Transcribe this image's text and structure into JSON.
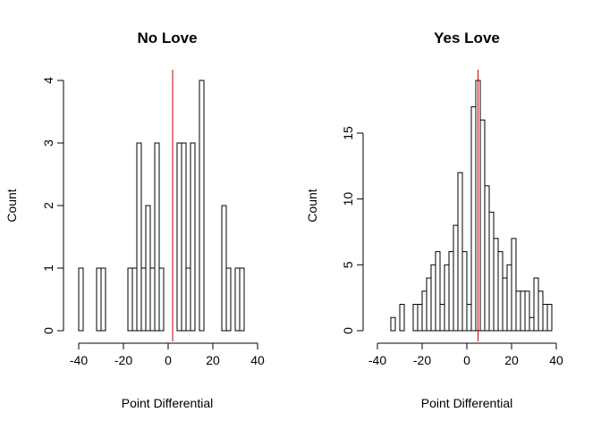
{
  "chart_data": [
    {
      "type": "bar",
      "title": "No Love",
      "xlabel": "Point Differential",
      "ylabel": "Count",
      "xlim": [
        -40,
        40
      ],
      "ylim": [
        0,
        4
      ],
      "xticks": [
        -40,
        -20,
        0,
        20,
        40
      ],
      "yticks": [
        0,
        1,
        2,
        3,
        4
      ],
      "bin_width": 2,
      "bins": [
        {
          "x0": -40,
          "count": 1
        },
        {
          "x0": -32,
          "count": 1
        },
        {
          "x0": -30,
          "count": 1
        },
        {
          "x0": -18,
          "count": 1
        },
        {
          "x0": -16,
          "count": 1
        },
        {
          "x0": -14,
          "count": 3
        },
        {
          "x0": -12,
          "count": 1
        },
        {
          "x0": -10,
          "count": 2
        },
        {
          "x0": -8,
          "count": 1
        },
        {
          "x0": -6,
          "count": 3
        },
        {
          "x0": -4,
          "count": 1
        },
        {
          "x0": 4,
          "count": 3
        },
        {
          "x0": 6,
          "count": 3
        },
        {
          "x0": 8,
          "count": 1
        },
        {
          "x0": 10,
          "count": 3
        },
        {
          "x0": 14,
          "count": 4
        },
        {
          "x0": 24,
          "count": 2
        },
        {
          "x0": 26,
          "count": 1
        },
        {
          "x0": 30,
          "count": 1
        },
        {
          "x0": 32,
          "count": 1
        }
      ],
      "vline": 2,
      "vline_color": "#cc0000"
    },
    {
      "type": "bar",
      "title": "Yes Love",
      "xlabel": "Point Differential",
      "ylabel": "Count",
      "xlim": [
        -40,
        40
      ],
      "ylim": [
        0,
        19
      ],
      "xticks": [
        -40,
        -20,
        0,
        20,
        40
      ],
      "yticks": [
        0,
        5,
        10,
        15
      ],
      "bin_width": 2,
      "bins": [
        {
          "x0": -34,
          "count": 1
        },
        {
          "x0": -30,
          "count": 2
        },
        {
          "x0": -24,
          "count": 2
        },
        {
          "x0": -22,
          "count": 2
        },
        {
          "x0": -20,
          "count": 3
        },
        {
          "x0": -18,
          "count": 4
        },
        {
          "x0": -16,
          "count": 5
        },
        {
          "x0": -14,
          "count": 6
        },
        {
          "x0": -12,
          "count": 2
        },
        {
          "x0": -10,
          "count": 5
        },
        {
          "x0": -8,
          "count": 6
        },
        {
          "x0": -6,
          "count": 8
        },
        {
          "x0": -4,
          "count": 12
        },
        {
          "x0": -2,
          "count": 6
        },
        {
          "x0": 0,
          "count": 2
        },
        {
          "x0": 2,
          "count": 17
        },
        {
          "x0": 4,
          "count": 19
        },
        {
          "x0": 6,
          "count": 16
        },
        {
          "x0": 8,
          "count": 11
        },
        {
          "x0": 10,
          "count": 9
        },
        {
          "x0": 12,
          "count": 7
        },
        {
          "x0": 14,
          "count": 6
        },
        {
          "x0": 16,
          "count": 4
        },
        {
          "x0": 18,
          "count": 5
        },
        {
          "x0": 20,
          "count": 7
        },
        {
          "x0": 22,
          "count": 3
        },
        {
          "x0": 24,
          "count": 3
        },
        {
          "x0": 26,
          "count": 3
        },
        {
          "x0": 28,
          "count": 1
        },
        {
          "x0": 30,
          "count": 4
        },
        {
          "x0": 32,
          "count": 3
        },
        {
          "x0": 34,
          "count": 2
        },
        {
          "x0": 36,
          "count": 2
        }
      ],
      "vline": 5,
      "vline_color": "#cc0000"
    }
  ]
}
